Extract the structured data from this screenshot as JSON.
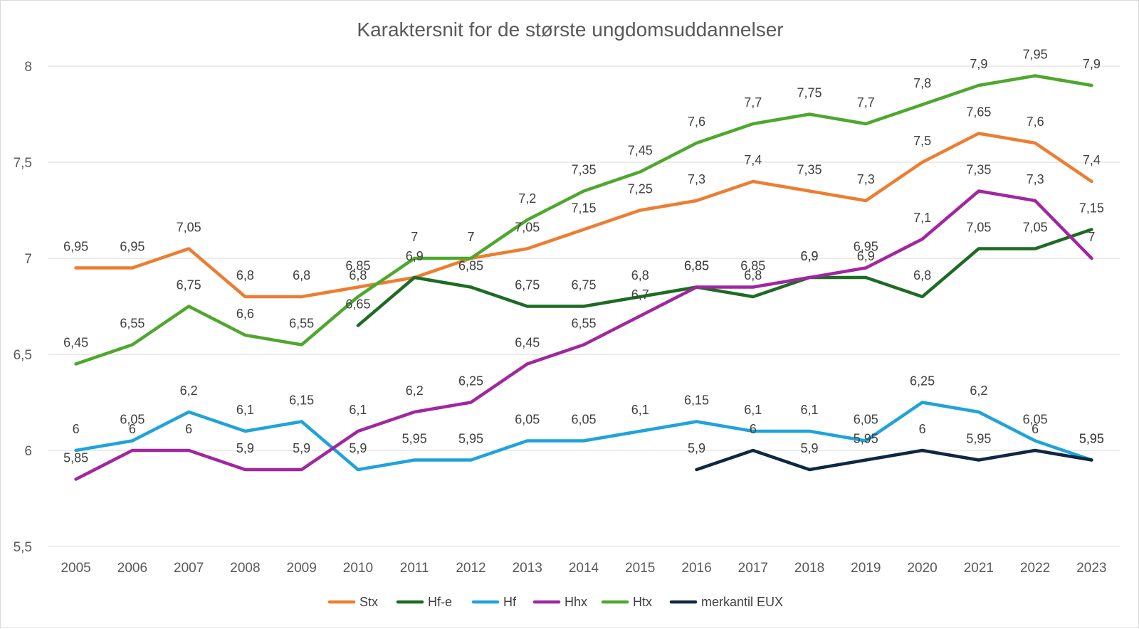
{
  "chart_data": {
    "type": "line",
    "title": "Karaktersnit for de største ungdomsuddannelser",
    "xlabel": "",
    "ylabel": "",
    "ylim": [
      5.5,
      8
    ],
    "yticks": [
      "5,5",
      "6",
      "6,5",
      "7",
      "7,5",
      "8"
    ],
    "grid": true,
    "legend_position": "bottom",
    "categories": [
      "2005",
      "2006",
      "2007",
      "2008",
      "2009",
      "2010",
      "2011",
      "2012",
      "2013",
      "2014",
      "2015",
      "2016",
      "2017",
      "2018",
      "2019",
      "2020",
      "2021",
      "2022",
      "2023"
    ],
    "series": [
      {
        "name": "Stx",
        "color": "#ED7D31",
        "values": [
          6.95,
          6.95,
          7.05,
          6.8,
          6.8,
          6.85,
          6.9,
          7.0,
          7.05,
          7.15,
          7.25,
          7.3,
          7.4,
          7.35,
          7.3,
          7.5,
          7.65,
          7.6,
          7.4
        ],
        "labels": [
          "6,95",
          "6,95",
          "7,05",
          "6,8",
          "6,8",
          "6,85",
          "",
          "7",
          "7,05",
          "7,15",
          "7,25",
          "7,3",
          "7,4",
          "7,35",
          "7,3",
          "7,5",
          "7,65",
          "7,6",
          "7,4"
        ]
      },
      {
        "name": "Hf-e",
        "color": "#1E6B24",
        "values": [
          null,
          null,
          null,
          null,
          null,
          6.65,
          6.9,
          6.85,
          6.75,
          6.75,
          6.8,
          6.85,
          6.8,
          6.9,
          6.9,
          6.8,
          7.05,
          7.05,
          7.15
        ],
        "labels": [
          "",
          "",
          "",
          "",
          "",
          "6,65",
          "6,9",
          "6,85",
          "6,75",
          "6,75",
          "6,8",
          "6,85",
          "6,8",
          "6,9",
          "6,9",
          "6,8",
          "7,05",
          "7,05",
          "7,15"
        ]
      },
      {
        "name": "Hf",
        "color": "#1FA3DA",
        "values": [
          6.0,
          6.05,
          6.2,
          6.1,
          6.15,
          5.9,
          5.95,
          5.95,
          6.05,
          6.05,
          6.1,
          6.15,
          6.1,
          6.1,
          6.05,
          6.25,
          6.2,
          6.05,
          5.95
        ],
        "labels": [
          "6",
          "6,05",
          "6,2",
          "6,1",
          "6,15",
          "5,9",
          "5,95",
          "5,95",
          "6,05",
          "6,05",
          "6,1",
          "6,15",
          "6,1",
          "6,1",
          "6,05",
          "6,25",
          "6,2",
          "6,05",
          "5,95"
        ]
      },
      {
        "name": "Hhx",
        "color": "#A0279F",
        "values": [
          5.85,
          6.0,
          6.0,
          5.9,
          5.9,
          6.1,
          6.2,
          6.25,
          6.45,
          6.55,
          6.7,
          6.85,
          6.85,
          6.9,
          6.95,
          7.1,
          7.35,
          7.3,
          7.0
        ],
        "labels": [
          "5,85",
          "6",
          "6",
          "5,9",
          "5,9",
          "6,1",
          "6,2",
          "6,25",
          "6,45",
          "6,55",
          "6,7",
          "6,85",
          "6,85",
          "6,9",
          "6,95",
          "7,1",
          "7,35",
          "7,3",
          "7"
        ]
      },
      {
        "name": "Htx",
        "color": "#4EA72E",
        "values": [
          6.45,
          6.55,
          6.75,
          6.6,
          6.55,
          6.8,
          7.0,
          7.0,
          7.2,
          7.35,
          7.45,
          7.6,
          7.7,
          7.75,
          7.7,
          7.8,
          7.9,
          7.95,
          7.9
        ],
        "labels": [
          "6,45",
          "6,55",
          "6,75",
          "6,6",
          "6,55",
          "6,8",
          "7",
          "7",
          "7,2",
          "7,35",
          "7,45",
          "7,6",
          "7,7",
          "7,75",
          "7,7",
          "7,8",
          "7,9",
          "7,95",
          "7,9"
        ]
      },
      {
        "name": "merkantil EUX",
        "color": "#0E2841",
        "values": [
          null,
          null,
          null,
          null,
          null,
          null,
          null,
          null,
          null,
          null,
          null,
          5.9,
          6.0,
          5.9,
          5.95,
          6.0,
          5.95,
          6.0,
          5.95
        ],
        "labels": [
          "",
          "",
          "",
          "",
          "",
          "",
          "",
          "",
          "",
          "",
          "",
          "5,9",
          "6",
          "5,9",
          "5,95",
          "6",
          "5,95",
          "6",
          "5,95"
        ]
      }
    ]
  }
}
